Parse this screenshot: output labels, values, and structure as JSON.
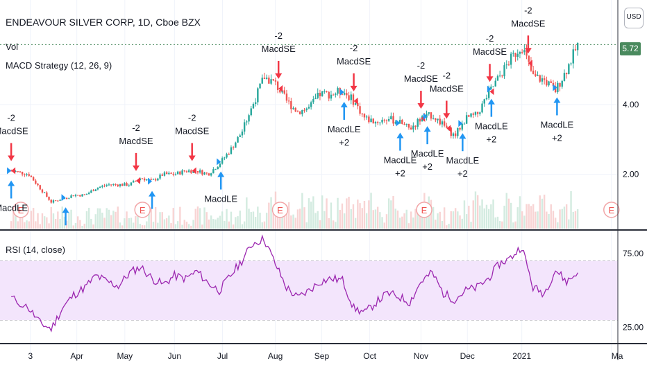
{
  "header": {
    "symbol_title": "ENDEAVOUR SILVER CORP, 1D, Cboe BZX",
    "volume_label": "Vol",
    "macd_label": "MACD Strategy (12, 26, 9)",
    "rsi_label": "RSI (14, close)",
    "currency_button": "USD",
    "last_price": "5.72"
  },
  "colors": {
    "up": "#26a69a",
    "down": "#ef5350",
    "buy_arrow": "#2196f3",
    "sell_arrow": "#f23645",
    "rsi_line": "#9c27b0",
    "rsi_band": "#f3e5fc",
    "last_price_badge": "#4a8a5e",
    "earnings_marker": "#f2a6a8"
  },
  "chart_data": [
    {
      "type": "candlestick",
      "title": "ENDEAVOUR SILVER CORP, 1D, Cboe BZX",
      "price_axis_ticks": [
        "2.00",
        "4.00"
      ],
      "price_axis_ticks_values": [
        2.0,
        4.0
      ],
      "ylim": [
        0.4,
        7.0
      ],
      "time_axis_labels": [
        "3",
        "Apr",
        "May",
        "Jun",
        "Jul",
        "Aug",
        "Sep",
        "Oct",
        "Nov",
        "Dec",
        "2021",
        "Ma"
      ],
      "time_axis_dates": [
        "2020-03-03",
        "2020-04-01",
        "2020-05-01",
        "2020-06-01",
        "2020-07-01",
        "2020-08-03",
        "2020-09-01",
        "2020-10-01",
        "2020-11-02",
        "2020-12-01",
        "2021-01-04",
        "2021-03-01"
      ],
      "last_close": 5.72,
      "close_series": {
        "dates": [
          "2020-02-20",
          "2020-03-02",
          "2020-03-09",
          "2020-03-16",
          "2020-03-23",
          "2020-03-30",
          "2020-04-06",
          "2020-04-13",
          "2020-04-20",
          "2020-04-27",
          "2020-05-04",
          "2020-05-11",
          "2020-05-18",
          "2020-05-25",
          "2020-06-01",
          "2020-06-08",
          "2020-06-15",
          "2020-06-22",
          "2020-06-29",
          "2020-07-06",
          "2020-07-13",
          "2020-07-20",
          "2020-07-27",
          "2020-08-03",
          "2020-08-10",
          "2020-08-17",
          "2020-08-24",
          "2020-08-31",
          "2020-09-07",
          "2020-09-14",
          "2020-09-21",
          "2020-09-28",
          "2020-10-05",
          "2020-10-12",
          "2020-10-19",
          "2020-10-26",
          "2020-11-02",
          "2020-11-09",
          "2020-11-16",
          "2020-11-23",
          "2020-11-30",
          "2020-12-07",
          "2020-12-14",
          "2020-12-21",
          "2020-12-28",
          "2021-01-04",
          "2021-01-11",
          "2021-01-18",
          "2021-01-25",
          "2021-02-01",
          "2021-02-08"
        ],
        "values": [
          2.1,
          2.0,
          1.6,
          1.2,
          1.3,
          1.4,
          1.4,
          1.6,
          1.7,
          1.7,
          1.7,
          1.9,
          1.8,
          2.0,
          2.0,
          2.1,
          2.1,
          2.0,
          2.3,
          2.7,
          3.2,
          4.0,
          4.8,
          4.6,
          4.1,
          3.8,
          3.9,
          4.3,
          4.3,
          4.4,
          4.1,
          3.6,
          3.5,
          3.6,
          3.5,
          3.3,
          3.6,
          3.7,
          3.4,
          3.1,
          3.6,
          3.7,
          4.3,
          4.8,
          5.3,
          5.7,
          4.8,
          4.7,
          4.4,
          5.0,
          5.72
        ]
      },
      "signals": [
        {
          "date": "2020-02-20",
          "kind": "sell",
          "labels": [
            "-2",
            "MacdSE"
          ]
        },
        {
          "date": "2020-05-08",
          "kind": "sell",
          "labels": [
            "-2",
            "MacdSE"
          ]
        },
        {
          "date": "2020-06-12",
          "kind": "sell",
          "labels": [
            "-2",
            "MacdSE"
          ]
        },
        {
          "date": "2020-08-05",
          "kind": "sell",
          "labels": [
            "-2",
            "MacdSE"
          ]
        },
        {
          "date": "2020-09-21",
          "kind": "sell",
          "labels": [
            "-2",
            "MacdSE"
          ]
        },
        {
          "date": "2020-11-02",
          "kind": "sell",
          "labels": [
            "-2",
            "MacdSE"
          ]
        },
        {
          "date": "2020-11-18",
          "kind": "sell",
          "labels": [
            "-2",
            "MacdSE"
          ]
        },
        {
          "date": "2020-12-15",
          "kind": "sell",
          "labels": [
            "-2",
            "MacdSE"
          ]
        },
        {
          "date": "2021-01-08",
          "kind": "sell",
          "labels": [
            "-2",
            "MacdSE"
          ]
        },
        {
          "date": "2020-09-15",
          "kind": "buy",
          "labels": [
            "MacdLE",
            "+2"
          ]
        },
        {
          "date": "2020-10-20",
          "kind": "buy",
          "labels": [
            "MacdLE",
            "+2"
          ]
        },
        {
          "date": "2020-11-06",
          "kind": "buy",
          "labels": [
            "MacdLE",
            "+2"
          ]
        },
        {
          "date": "2020-11-28",
          "kind": "buy",
          "labels": [
            "MacdLE",
            "+2"
          ]
        },
        {
          "date": "2020-12-16",
          "kind": "buy",
          "labels": [
            "MacdLE",
            "+2"
          ]
        },
        {
          "date": "2021-01-26",
          "kind": "buy",
          "labels": [
            "MacdLE",
            "+2"
          ]
        },
        {
          "date": "2020-06-30",
          "kind": "buy",
          "labels": [
            "MacdLE"
          ]
        },
        {
          "date": "2020-02-20",
          "kind": "buy",
          "labels": [
            "MacdLE"
          ]
        },
        {
          "date": "2020-03-25",
          "kind": "buy",
          "labels": []
        },
        {
          "date": "2020-05-18",
          "kind": "buy",
          "labels": []
        }
      ],
      "earnings_markers": {
        "dates": [
          "2020-02-26",
          "2020-05-12",
          "2020-08-06",
          "2020-11-04",
          "2021-03-01"
        ],
        "label": "E"
      }
    },
    {
      "type": "line",
      "title": "RSI (14, close)",
      "y_axis_ticks": [
        "75.00",
        "25.00"
      ],
      "y_axis_ticks_values": [
        75,
        25
      ],
      "ylim": [
        15,
        90
      ],
      "band": [
        30,
        70
      ],
      "series": [
        {
          "dates": [
            "2020-02-20",
            "2020-03-02",
            "2020-03-09",
            "2020-03-16",
            "2020-03-23",
            "2020-03-30",
            "2020-04-06",
            "2020-04-13",
            "2020-04-20",
            "2020-04-27",
            "2020-05-04",
            "2020-05-11",
            "2020-05-18",
            "2020-05-25",
            "2020-06-01",
            "2020-06-08",
            "2020-06-15",
            "2020-06-22",
            "2020-06-29",
            "2020-07-06",
            "2020-07-13",
            "2020-07-20",
            "2020-07-27",
            "2020-08-03",
            "2020-08-10",
            "2020-08-17",
            "2020-08-24",
            "2020-08-31",
            "2020-09-07",
            "2020-09-14",
            "2020-09-21",
            "2020-09-28",
            "2020-10-05",
            "2020-10-12",
            "2020-10-19",
            "2020-10-26",
            "2020-11-02",
            "2020-11-09",
            "2020-11-16",
            "2020-11-23",
            "2020-11-30",
            "2020-12-07",
            "2020-12-14",
            "2020-12-21",
            "2020-12-28",
            "2021-01-04",
            "2021-01-11",
            "2021-01-18",
            "2021-01-25",
            "2021-02-01",
            "2021-02-08"
          ],
          "values": [
            45,
            38,
            28,
            24,
            38,
            47,
            52,
            60,
            56,
            53,
            62,
            66,
            58,
            54,
            60,
            58,
            63,
            55,
            50,
            60,
            70,
            82,
            85,
            68,
            52,
            45,
            50,
            56,
            58,
            57,
            38,
            35,
            42,
            48,
            46,
            42,
            56,
            62,
            48,
            44,
            50,
            52,
            58,
            68,
            72,
            80,
            52,
            48,
            64,
            56,
            62
          ]
        }
      ]
    }
  ]
}
